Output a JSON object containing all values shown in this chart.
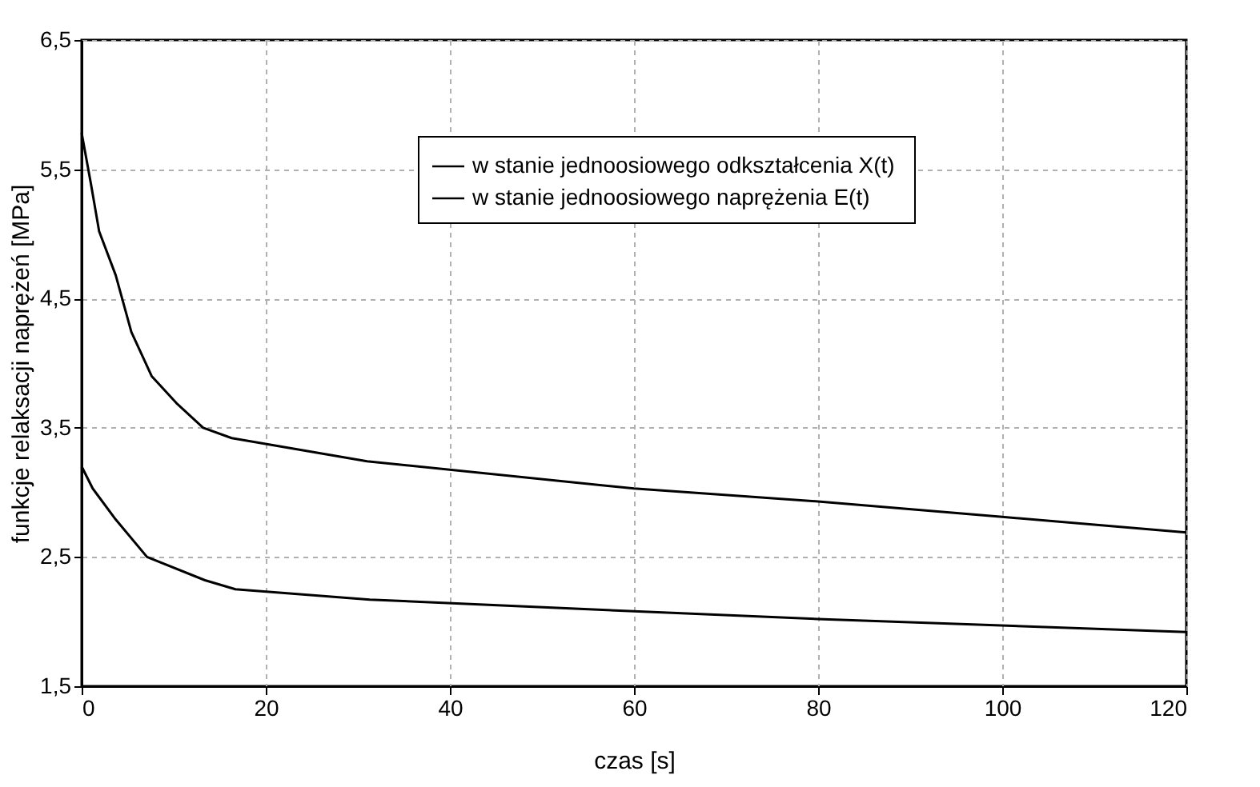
{
  "chart_data": {
    "type": "line",
    "xlabel": "czas [s]",
    "ylabel": "funkcje relaksacji naprężeń [MPa]",
    "xlim": [
      0,
      120
    ],
    "xticks": [
      0,
      20,
      40,
      60,
      80,
      100,
      120
    ],
    "ylim": [
      1.5,
      6.5
    ],
    "yticks": [
      {
        "value": 1.5,
        "label": "1,5"
      },
      {
        "value": 2.5,
        "label": "2,5"
      },
      {
        "value": 3.5,
        "label": "3,5"
      },
      {
        "value": 4.5,
        "label": "4,5"
      },
      {
        "value": 5.5,
        "label": "5,5"
      },
      {
        "value": 6.5,
        "label": "6,5"
      }
    ],
    "grid": true,
    "legend": "top",
    "line_style": "solid",
    "marker": "none",
    "series": [
      {
        "name": "w stanie jednoosiowego odkształcenia  X(t)",
        "color": "#000000",
        "x": [
          0,
          1,
          1.9,
          3.7,
          5.4,
          7.6,
          10.3,
          13.2,
          16.3,
          31,
          60,
          80,
          100,
          120
        ],
        "values": [
          5.78,
          5.39,
          5.02,
          4.68,
          4.24,
          3.9,
          3.69,
          3.5,
          3.42,
          3.24,
          3.03,
          2.93,
          2.81,
          2.69
        ]
      },
      {
        "name": "w stanie jednoosiowego naprężenia      E(t)",
        "color": "#000000",
        "x": [
          0,
          1.2,
          3.7,
          7.1,
          13.4,
          16.7,
          31.3,
          60,
          80,
          120
        ],
        "values": [
          3.2,
          3.03,
          2.79,
          2.5,
          2.32,
          2.25,
          2.17,
          2.08,
          2.02,
          1.92
        ]
      }
    ]
  }
}
